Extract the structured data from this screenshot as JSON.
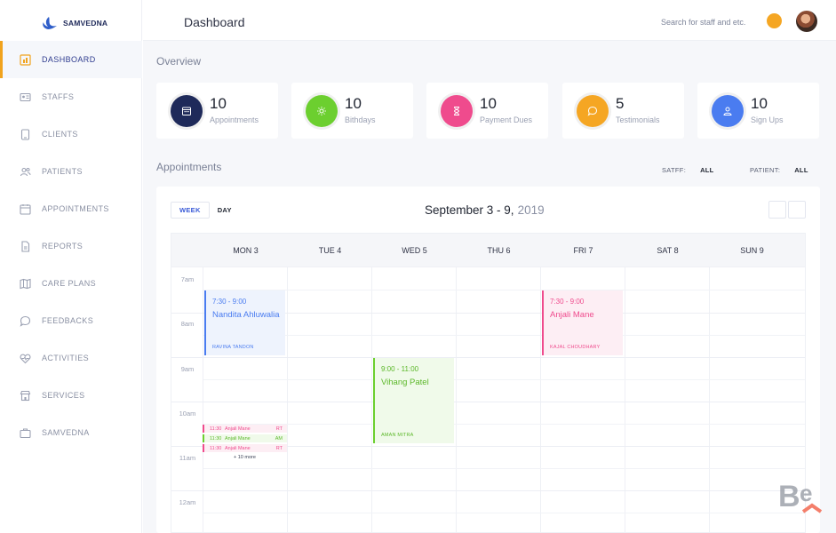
{
  "app": {
    "brand": "SAMVEDNA"
  },
  "sidebar": {
    "items": [
      {
        "label": "DASHBOARD",
        "icon": "dashboard-icon",
        "active": true
      },
      {
        "label": "STAFFS",
        "icon": "id-card-icon"
      },
      {
        "label": "CLIENTS",
        "icon": "tablet-icon"
      },
      {
        "label": "PATIENTS",
        "icon": "users-icon"
      },
      {
        "label": "APPOINTMENTS",
        "icon": "calendar-icon"
      },
      {
        "label": "REPORTS",
        "icon": "document-icon"
      },
      {
        "label": "CARE PLANS",
        "icon": "map-icon"
      },
      {
        "label": "FEEDBACKS",
        "icon": "chat-icon"
      },
      {
        "label": "ACTIVITIES",
        "icon": "heart-pulse-icon"
      },
      {
        "label": "SERVICES",
        "icon": "store-icon"
      },
      {
        "label": "SAMVEDNA",
        "icon": "briefcase-icon"
      }
    ]
  },
  "header": {
    "title": "Dashboard",
    "search_placeholder": "Search for staff and etc."
  },
  "overview": {
    "title": "Overview",
    "cards": [
      {
        "value": "10",
        "label": "Appointments",
        "color": "#1f2a5a",
        "icon": "calendar-icon"
      },
      {
        "value": "10",
        "label": "Bithdays",
        "color": "#6ccf2f",
        "icon": "sun-icon"
      },
      {
        "value": "10",
        "label": "Payment Dues",
        "color": "#ef4b8d",
        "icon": "hourglass-icon"
      },
      {
        "value": "5",
        "label": "Testimonials",
        "color": "#f5a623",
        "icon": "chat-icon"
      },
      {
        "value": "10",
        "label": "Sign Ups",
        "color": "#4a7cf0",
        "icon": "user-icon"
      }
    ]
  },
  "appointments": {
    "title": "Appointments",
    "filters": {
      "staff_key": "SATFF:",
      "staff_value": "ALL",
      "patient_key": "PATIENT:",
      "patient_value": "ALL"
    },
    "tabs": [
      "WEEK",
      "DAY"
    ],
    "range": "September 3 - 9,",
    "year": "2019",
    "days": [
      "MON 3",
      "TUE 4",
      "WED 5",
      "THU 6",
      "FRI 7",
      "SAT 8",
      "SUN 9"
    ],
    "times": [
      "7am",
      "8am",
      "9am",
      "10am",
      "11am",
      "12am"
    ],
    "events": [
      {
        "time": "7:30 - 9:00",
        "name": "Nandita Ahluwalia",
        "staff": "RAVINA TANDON",
        "color": "#4a7cf0",
        "bg": "#eef3fd"
      },
      {
        "time": "7:30 - 9:00",
        "name": "Anjali Mane",
        "staff": "KAJAL CHOUDHARY",
        "color": "#ef4b8d",
        "bg": "#fdeef4"
      },
      {
        "time": "9:00 - 11:00",
        "name": "Vihang Patel",
        "staff": "AMAN MITRA",
        "color": "#6ccf2f",
        "bg": "#f0faea"
      }
    ],
    "mini_events": [
      {
        "time": "11:30",
        "name": "Anjali Mane",
        "code": "RT",
        "color": "#ef4b8d",
        "bg": "#fdeef4"
      },
      {
        "time": "11:30",
        "name": "Anjali Mane",
        "code": "AM",
        "color": "#6ccf2f",
        "bg": "#f0faea"
      },
      {
        "time": "11:30",
        "name": "Anjali Mane",
        "code": "RT",
        "color": "#ef4b8d",
        "bg": "#fdeef4"
      }
    ],
    "more_label": "+ 10 more"
  }
}
